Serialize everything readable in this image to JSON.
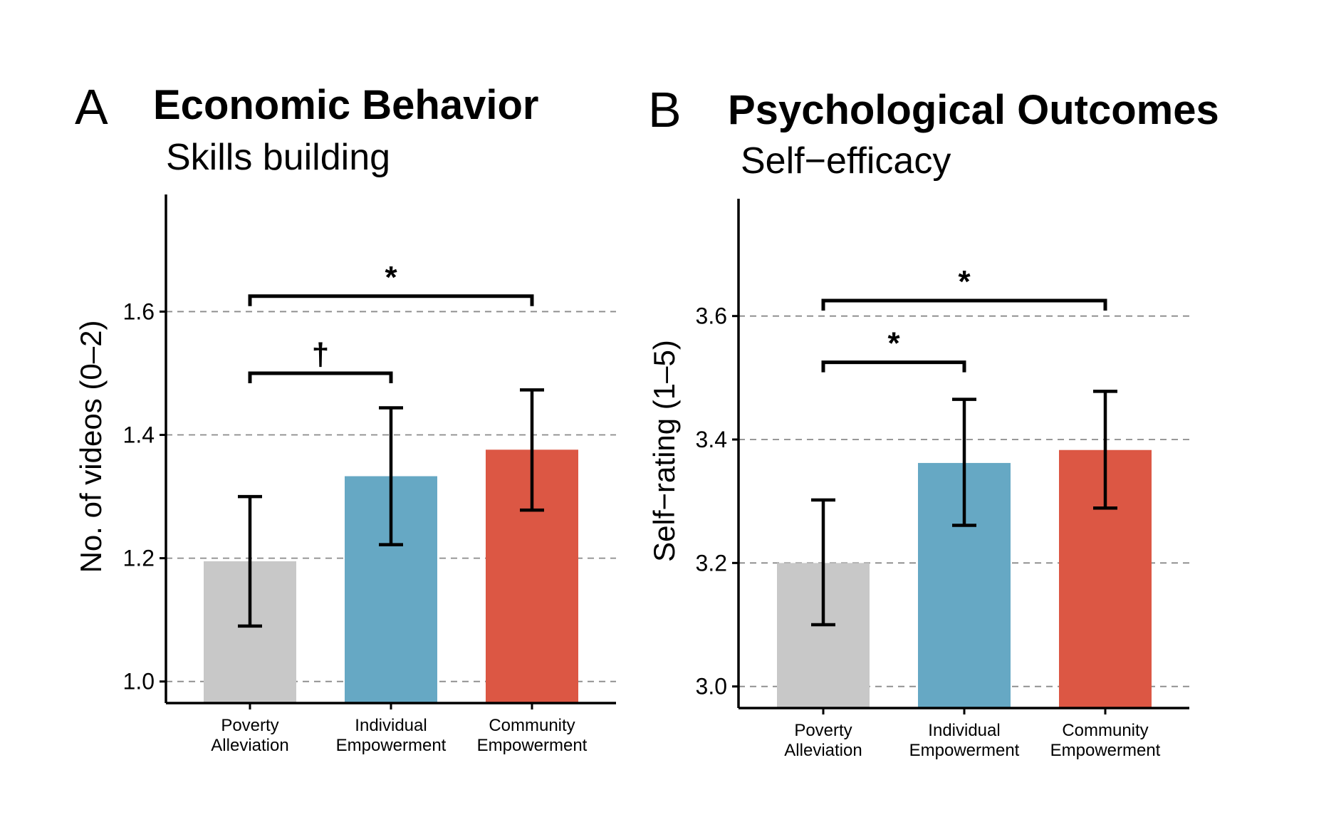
{
  "chart_data": [
    {
      "type": "bar",
      "panel_label": "A",
      "title": "Economic Behavior",
      "subtitle": "Skills building",
      "xlabel": "",
      "ylabel": "No. of videos (0–2)",
      "categories": [
        "Poverty Alleviation",
        "Individual Empowerment",
        "Community Empowerment"
      ],
      "category_lines": [
        [
          "Poverty",
          "Alleviation"
        ],
        [
          "Individual",
          "Empowerment"
        ],
        [
          "Community",
          "Empowerment"
        ]
      ],
      "values": [
        1.195,
        1.333,
        1.376
      ],
      "error_low": [
        1.09,
        1.222,
        1.278
      ],
      "error_high": [
        1.3,
        1.444,
        1.473
      ],
      "colors": [
        "#c8c8c8",
        "#66a8c4",
        "#dc5744"
      ],
      "yticks": [
        "1.0",
        "1.2",
        "1.4",
        "1.6"
      ],
      "ylim": [
        0.965,
        1.79
      ],
      "grid": "dashed horizontal",
      "significance": [
        {
          "from": 0,
          "to": 1,
          "label": "†",
          "y": 1.5
        },
        {
          "from": 0,
          "to": 2,
          "label": "*",
          "y": 1.625
        }
      ]
    },
    {
      "type": "bar",
      "panel_label": "B",
      "title": "Psychological Outcomes",
      "subtitle": "Self−efficacy",
      "xlabel": "",
      "ylabel": "Self−rating (1–5)",
      "categories": [
        "Poverty Alleviation",
        "Individual Empowerment",
        "Community Empowerment"
      ],
      "category_lines": [
        [
          "Poverty",
          "Alleviation"
        ],
        [
          "Individual",
          "Empowerment"
        ],
        [
          "Community",
          "Empowerment"
        ]
      ],
      "values": [
        3.2,
        3.362,
        3.383
      ],
      "error_low": [
        3.1,
        3.261,
        3.289
      ],
      "error_high": [
        3.302,
        3.465,
        3.478
      ],
      "colors": [
        "#c8c8c8",
        "#66a8c4",
        "#dc5744"
      ],
      "yticks": [
        "3.0",
        "3.2",
        "3.4",
        "3.6"
      ],
      "ylim": [
        2.965,
        3.79
      ],
      "grid": "dashed horizontal",
      "significance": [
        {
          "from": 0,
          "to": 1,
          "label": "*",
          "y": 3.525
        },
        {
          "from": 0,
          "to": 2,
          "label": "*",
          "y": 3.625
        }
      ]
    }
  ]
}
